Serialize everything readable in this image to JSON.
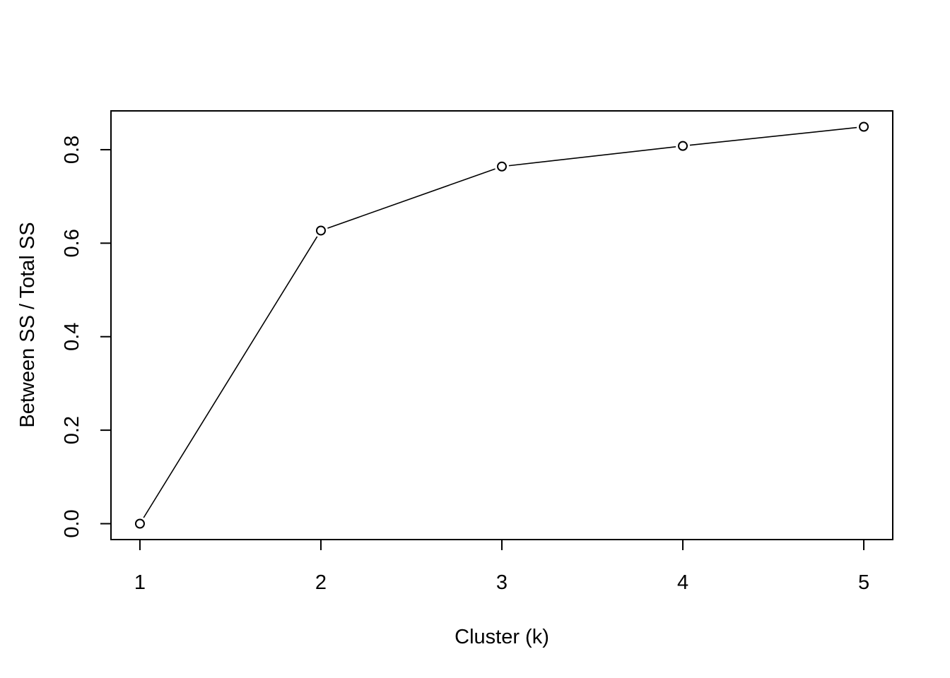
{
  "chart_data": {
    "type": "line",
    "title": "",
    "xlabel": "Cluster (k)",
    "ylabel": "Between SS / Total SS",
    "x": [
      1,
      2,
      3,
      4,
      5
    ],
    "values": [
      0.0,
      0.627,
      0.764,
      0.808,
      0.849
    ],
    "xticks": [
      "1",
      "2",
      "3",
      "4",
      "5"
    ],
    "yticks": [
      "0.0",
      "0.2",
      "0.4",
      "0.6",
      "0.8"
    ],
    "xlim": [
      0.84,
      5.16
    ],
    "ylim": [
      -0.034,
      0.883
    ],
    "grid": false,
    "legend": "none",
    "line_color": "#000000",
    "marker": "open-circle"
  }
}
